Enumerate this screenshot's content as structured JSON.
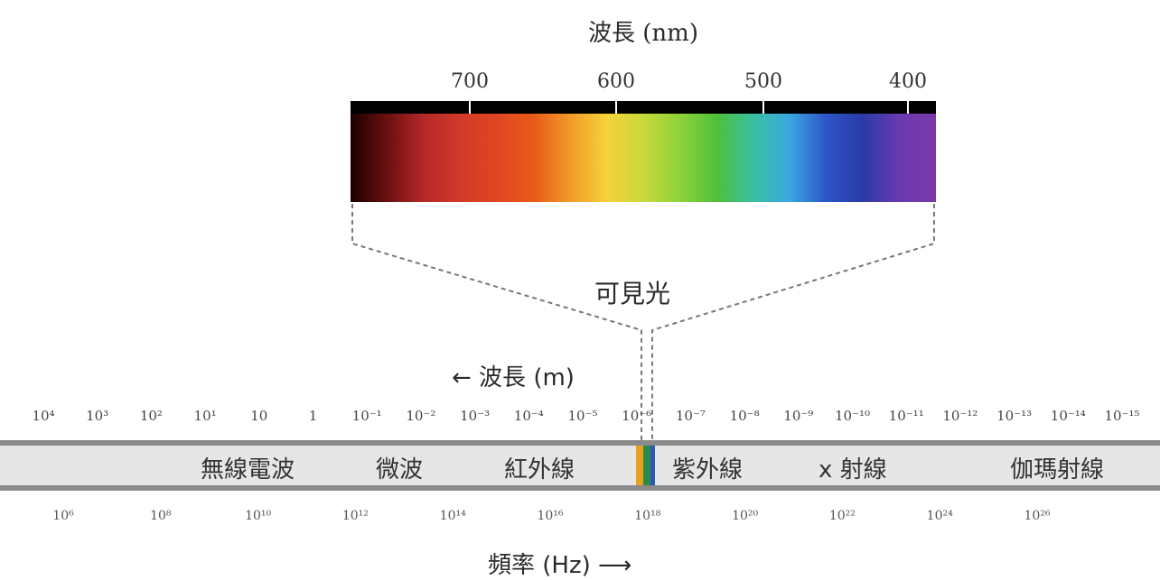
{
  "wavelength_nm": {
    "title": "波長 (nm)",
    "ticks": [
      "700",
      "600",
      "500",
      "400"
    ]
  },
  "spectrum_colors": [
    "#1a0000",
    "#6b0f0f",
    "#b52828",
    "#d23a2a",
    "#e04622",
    "#e85a18",
    "#f29a2a",
    "#f5d23a",
    "#c8d93a",
    "#8fd23a",
    "#4fc03a",
    "#3ac0a0",
    "#3aa8e0",
    "#2e55c8",
    "#2a3aa8",
    "#6a3ab0",
    "#7a3aa8"
  ],
  "visible_light": "可見光",
  "wavelength_m": {
    "label": "← 波長 (m)",
    "ticks": [
      "10⁴",
      "10³",
      "10²",
      "10¹",
      "10",
      "1",
      "10⁻¹",
      "10⁻²",
      "10⁻³",
      "10⁻⁴",
      "10⁻⁵",
      "10⁻⁶",
      "10⁻⁷",
      "10⁻⁸",
      "10⁻⁹",
      "10⁻¹⁰",
      "10⁻¹¹",
      "10⁻¹²",
      "10⁻¹³",
      "10⁻¹⁴",
      "10⁻¹⁵"
    ]
  },
  "regions": {
    "radio": "無線電波",
    "microwave": "微波",
    "infrared": "紅外線",
    "ultraviolet": "紫外線",
    "xray": "x 射線",
    "gamma": "伽瑪射線"
  },
  "frequency": {
    "label": "頻率 (Hz) ⟶",
    "ticks": [
      "10⁶",
      "10⁸",
      "10¹⁰",
      "10¹²",
      "10¹⁴",
      "10¹⁶",
      "10¹⁸",
      "10²⁰",
      "10²²",
      "10²⁴",
      "10²⁶"
    ]
  }
}
